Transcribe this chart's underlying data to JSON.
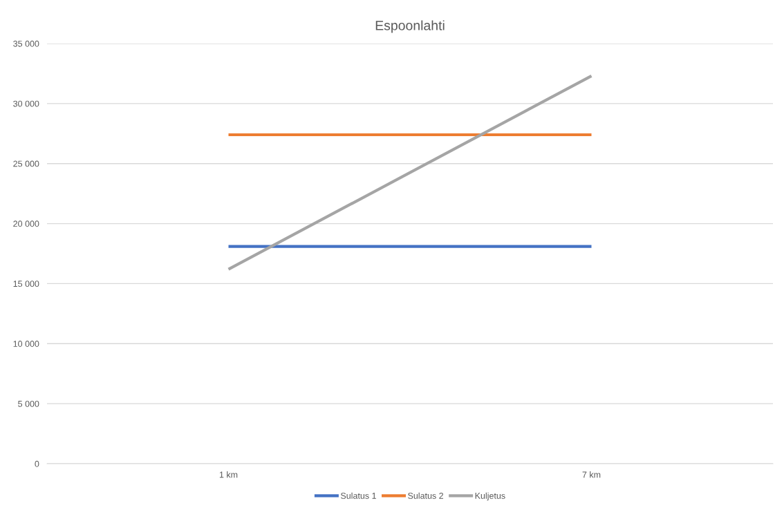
{
  "chart_data": {
    "type": "line",
    "title": "Espoonlahti",
    "categories": [
      "1 km",
      "7 km"
    ],
    "series": [
      {
        "name": "Sulatus 1",
        "color": "#4472c4",
        "values": [
          18100,
          18100
        ]
      },
      {
        "name": "Sulatus 2",
        "color": "#ed7d31",
        "values": [
          27400,
          27400
        ]
      },
      {
        "name": "Kuljetus",
        "color": "#a5a5a5",
        "values": [
          16200,
          32300
        ]
      }
    ],
    "ylim": [
      0,
      35000
    ],
    "yticks": [
      {
        "value": 0,
        "label": "0"
      },
      {
        "value": 5000,
        "label": "5 000"
      },
      {
        "value": 10000,
        "label": "10 000"
      },
      {
        "value": 15000,
        "label": "15 000"
      },
      {
        "value": 20000,
        "label": "20 000"
      },
      {
        "value": 25000,
        "label": "25 000"
      },
      {
        "value": 30000,
        "label": "30 000"
      },
      {
        "value": 35000,
        "label": "35 000"
      }
    ],
    "grid": "y",
    "legend": "bottom",
    "marker": "none",
    "line_style": "solid"
  }
}
